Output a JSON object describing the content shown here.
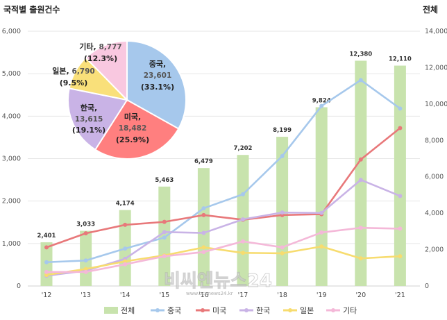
{
  "titles": {
    "left": "국적별 출원건수",
    "right": "전체"
  },
  "watermark": {
    "main": "비씨엔뉴스24",
    "sub": "www.bcnnews24.kr"
  },
  "chart_data": [
    {
      "type": "bar+line",
      "categories": [
        "'12",
        "'13",
        "'14",
        "'15",
        "'16",
        "'17",
        "'18",
        "'19",
        "'20",
        "'21"
      ],
      "left_axis": {
        "range": [
          0,
          6000
        ],
        "ticks": [
          "0",
          "1,000",
          "2,000",
          "3,000",
          "4,000",
          "5,000",
          "6,000"
        ]
      },
      "right_axis": {
        "range": [
          0,
          14000
        ],
        "ticks": [
          "0",
          "2,000",
          "4,000",
          "6,000",
          "8,000",
          "10,000",
          "12,000",
          "14,000"
        ]
      },
      "bars": {
        "name": "전체",
        "axis": "right",
        "color": "#c8e3ad",
        "values": [
          2401,
          3033,
          4174,
          5463,
          6479,
          7202,
          8199,
          9824,
          12380,
          12110
        ],
        "labels": [
          "2,401",
          "3,033",
          "4,174",
          "5,463",
          "6,479",
          "7,202",
          "8,199",
          "9,824",
          "12,380",
          "12,110"
        ]
      },
      "series": [
        {
          "name": "중국",
          "color": "#a6c8ec",
          "values": [
            560,
            600,
            880,
            1140,
            1830,
            2160,
            3060,
            4240,
            4850,
            4180
          ]
        },
        {
          "name": "미국",
          "color": "#e8787a",
          "values": [
            910,
            1240,
            1440,
            1510,
            1670,
            1560,
            1670,
            1690,
            2980,
            3720
          ]
        },
        {
          "name": "한국",
          "color": "#c9b3e6",
          "values": [
            240,
            360,
            640,
            1270,
            1250,
            1570,
            1730,
            1720,
            2500,
            2120
          ]
        },
        {
          "name": "일본",
          "color": "#f7dc6f",
          "values": [
            260,
            400,
            580,
            720,
            910,
            780,
            770,
            930,
            650,
            700
          ]
        },
        {
          "name": "기타",
          "color": "#f4b8d8",
          "values": [
            330,
            330,
            510,
            700,
            800,
            1050,
            910,
            1260,
            1370,
            1350
          ]
        }
      ],
      "legend": [
        "전체",
        "중국",
        "미국",
        "한국",
        "일본",
        "기타"
      ],
      "legend_position": "bottom"
    },
    {
      "type": "pie",
      "slices": [
        {
          "name": "중국",
          "value": 23601,
          "label_value": "23,601",
          "label_pct": "(33.1%)",
          "color": "#a6c8ec"
        },
        {
          "name": "미국",
          "value": 18482,
          "label_value": "18,482",
          "label_pct": "(25.9%)",
          "color": "#ff7f7f"
        },
        {
          "name": "한국",
          "value": 13615,
          "label_value": "13,615",
          "label_pct": "(19.1%)",
          "color": "#c9b3e6"
        },
        {
          "name": "일본",
          "value": 6790,
          "label_value": "6,790",
          "label_pct": "(9.5%)",
          "color": "#f9e07a"
        },
        {
          "name": "기타",
          "value": 8777,
          "label_value": "8,777",
          "label_pct": "(12.3%)",
          "color": "#f9c8e0"
        }
      ]
    }
  ]
}
